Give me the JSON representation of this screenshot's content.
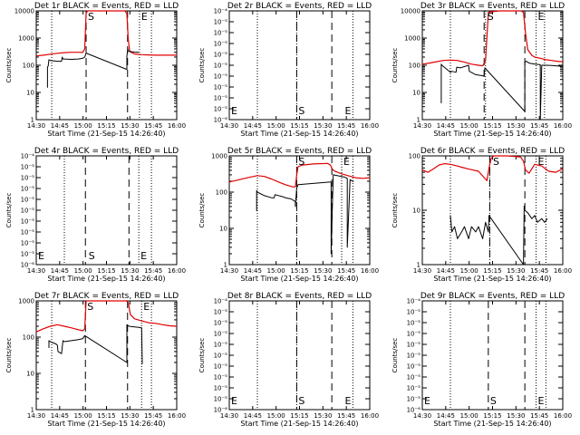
{
  "figure": {
    "colors": {
      "events": "#000000",
      "lld": "#e00000",
      "axes": "#000000"
    },
    "panel_titles": [
      "Det 1r BLACK = Events, RED = LLD",
      "Det 2r BLACK = Events, RED = LLD",
      "Det 3r BLACK = Events, RED = LLD",
      "Det 4r BLACK = Events, RED = LLD",
      "Det 5r BLACK = Events, RED = LLD",
      "Det 6r BLACK = Events, RED = LLD",
      "Det 7r BLACK = Events, RED = LLD",
      "Det 8r BLACK = Events, RED = LLD",
      "Det 9r BLACK = Events, RED = LLD"
    ]
  },
  "chart_data": [
    {
      "type": "line",
      "title": "Det 1r BLACK = Events, RED = LLD",
      "xlabel": "Start Time (21-Sep-15 14:26:40)",
      "ylabel": "Counts/sec",
      "xticks": [
        "14:30",
        "14:45",
        "15:00",
        "15:15",
        "15:30",
        "15:45",
        "16:00"
      ],
      "xlim": [
        0,
        100
      ],
      "ylim_exp": [
        0,
        4
      ],
      "yticks": [
        "1",
        "10",
        "100",
        "1000",
        "10000"
      ],
      "markers": [
        {
          "label": "S",
          "x": 35.5
        },
        {
          "label": "E",
          "x": 73.5
        }
      ],
      "dotted": [
        11,
        73.5,
        82
      ],
      "dashed": [
        35.5,
        65
      ],
      "series": [
        {
          "name": "LLD",
          "x": [
            0,
            5,
            10,
            15,
            20,
            25,
            30,
            33,
            34.5,
            35.5,
            36.5,
            38,
            45,
            55,
            60,
            63,
            64.5,
            65.5,
            66.5,
            70,
            75,
            80,
            85,
            90,
            95,
            100
          ],
          "y": [
            220,
            235,
            255,
            275,
            290,
            300,
            300,
            295,
            400,
            8000,
            10500,
            11000,
            11500,
            11800,
            11500,
            11000,
            8000,
            900,
            320,
            260,
            245,
            240,
            235,
            235,
            235,
            235
          ]
        },
        {
          "name": "Events",
          "x": [
            8,
            8,
            8.5,
            9,
            10,
            15,
            18,
            18.5,
            19,
            20,
            25,
            30,
            33,
            34.5,
            35.5,
            64.5,
            64.5,
            65.2,
            65.2,
            66,
            68,
            70,
            73
          ],
          "y": [
            15,
            85,
            95,
            160,
            150,
            140,
            140,
            200,
            170,
            170,
            165,
            170,
            180,
            200,
            280,
            70,
            220,
            400,
            350,
            330,
            315,
            305,
            300
          ]
        }
      ]
    },
    {
      "type": "line",
      "title": "Det 2r BLACK = Events, RED = LLD",
      "xlabel": "Start Time (21-Sep-15 14:26:40)",
      "ylabel": "Counts/sec",
      "xticks": [
        "14:30",
        "14:45",
        "15:00",
        "15:15",
        "15:30",
        "15:45",
        "16:00"
      ],
      "xlim": [
        0,
        100
      ],
      "ylim_exp": [
        -6,
        -4
      ],
      "yticks": [
        "10⁻⁶",
        "10⁻⁵",
        "10⁻⁵",
        "10⁻⁵",
        "10⁻⁵",
        "10⁻⁵",
        "10⁻⁵",
        "10⁻⁵",
        "10⁻⁵",
        "10⁻⁵",
        "10⁻⁴"
      ],
      "markers": [
        {
          "label": "S",
          "x": 48
        },
        {
          "label": "E",
          "x": 81
        }
      ],
      "dotted": [
        20,
        48,
        88
      ],
      "dashed": [
        48,
        73
      ],
      "series": []
    },
    {
      "type": "line",
      "title": "Det 3r BLACK = Events, RED = LLD",
      "xlabel": "Start Time (21-Sep-15 14:26:40)",
      "ylabel": "Counts/sec",
      "xticks": [
        "14:30",
        "14:45",
        "15:00",
        "15:15",
        "15:30",
        "15:45",
        "16:00"
      ],
      "xlim": [
        0,
        100
      ],
      "ylim_exp": [
        0,
        4
      ],
      "yticks": [
        "1",
        "10",
        "100",
        "1000",
        "10000"
      ],
      "markers": [
        {
          "label": "S",
          "x": 45
        },
        {
          "label": "E",
          "x": 81
        }
      ],
      "dotted": [
        20,
        45,
        81,
        87
      ],
      "dashed": [
        44,
        73
      ],
      "series": [
        {
          "name": "LLD",
          "x": [
            0,
            5,
            10,
            15,
            20,
            25,
            30,
            35,
            40,
            43,
            45,
            47,
            55,
            65,
            70,
            72,
            73.5,
            75,
            78,
            80,
            84,
            88,
            92,
            96,
            100
          ],
          "y": [
            110,
            120,
            135,
            150,
            155,
            150,
            130,
            110,
            100,
            95,
            150,
            9000,
            11500,
            11500,
            11000,
            9000,
            1500,
            380,
            230,
            200,
            180,
            160,
            150,
            140,
            135
          ]
        },
        {
          "name": "Events",
          "x": [
            13.5,
            13.5,
            14,
            15,
            20,
            21,
            24,
            24.5,
            27,
            33,
            33.5,
            38,
            44,
            44.5,
            73,
            73,
            74,
            76,
            80,
            84,
            84,
            85,
            88,
            92,
            96,
            100
          ],
          "y": [
            4,
            110,
            100,
            90,
            55,
            60,
            55,
            85,
            80,
            100,
            60,
            45,
            40,
            80,
            2,
            130,
            140,
            120,
            110,
            105,
            1,
            100,
            100,
            98,
            95,
            90
          ]
        }
      ]
    },
    {
      "type": "line",
      "title": "Det 4r BLACK = Events, RED = LLD",
      "xlabel": "Start Time (21-Sep-15 14:26:40)",
      "ylabel": "Counts/sec",
      "xticks": [
        "14:30",
        "14:45",
        "15:00",
        "15:15",
        "15:30",
        "15:45",
        "16:00"
      ],
      "xlim": [
        0,
        100
      ],
      "ylim_exp": [
        -6,
        -4
      ],
      "yticks": [
        "10⁻⁶",
        "10⁻⁵",
        "10⁻⁵",
        "10⁻⁵",
        "10⁻⁵",
        "10⁻⁵",
        "10⁻⁵",
        "10⁻⁵",
        "10⁻⁵",
        "10⁻⁵",
        "10⁻⁴"
      ],
      "markers": [
        {
          "label": "S",
          "x": 36
        },
        {
          "label": "E",
          "x": 73
        }
      ],
      "dotted": [
        20,
        73,
        82
      ],
      "dashed": [
        35,
        66
      ],
      "series": []
    },
    {
      "type": "line",
      "title": "Det 5r BLACK = Events, RED = LLD",
      "xlabel": "Start Time (21-Sep-15 14:26:40)",
      "ylabel": "Counts/sec",
      "xticks": [
        "14:30",
        "14:45",
        "15:00",
        "15:15",
        "15:30",
        "15:45",
        "16:00"
      ],
      "xlim": [
        0,
        100
      ],
      "ylim_exp": [
        0,
        3
      ],
      "yticks": [
        "1",
        "10",
        "100",
        "1000"
      ],
      "markers": [
        {
          "label": "S",
          "x": 48
        },
        {
          "label": "E",
          "x": 80
        }
      ],
      "dotted": [
        20,
        48,
        80,
        88
      ],
      "dashed": [
        48,
        73
      ],
      "series": [
        {
          "name": "LLD",
          "x": [
            0,
            5,
            10,
            15,
            20,
            25,
            30,
            35,
            40,
            45,
            47,
            48,
            49,
            52,
            60,
            70,
            72,
            73.5,
            75,
            80,
            85,
            90,
            95,
            100
          ],
          "y": [
            190,
            210,
            235,
            260,
            285,
            270,
            230,
            190,
            160,
            140,
            140,
            300,
            500,
            560,
            600,
            620,
            560,
            420,
            380,
            320,
            280,
            250,
            240,
            250
          ]
        },
        {
          "name": "Events",
          "x": [
            19.5,
            19.5,
            20,
            25,
            30,
            32,
            32.5,
            38,
            40,
            44,
            47,
            47,
            48,
            49,
            72.5,
            72.5,
            74,
            78,
            82,
            84,
            84,
            86,
            88,
            88.5
          ],
          "y": [
            30,
            110,
            100,
            80,
            70,
            70,
            85,
            75,
            70,
            65,
            55,
            40,
            130,
            160,
            190,
            2,
            300,
            280,
            260,
            240,
            3,
            220,
            200,
            195
          ]
        }
      ]
    },
    {
      "type": "line",
      "title": "Det 6r BLACK = Events, RED = LLD",
      "xlabel": "Start Time (21-Sep-15 14:26:40)",
      "ylabel": "Counts/sec",
      "xticks": [
        "14:30",
        "14:45",
        "15:00",
        "15:15",
        "15:30",
        "15:45",
        "16:00"
      ],
      "xlim": [
        0,
        100
      ],
      "ylim_exp": [
        0,
        2
      ],
      "yticks": [
        "1",
        "10",
        "100"
      ],
      "markers": [
        {
          "label": "S",
          "x": 49
        },
        {
          "label": "E",
          "x": 81
        }
      ],
      "dotted": [
        20,
        48,
        81,
        88
      ],
      "dashed": [
        48,
        73
      ],
      "series": [
        {
          "name": "LLD",
          "x": [
            0,
            4,
            8,
            12,
            16,
            20,
            24,
            28,
            32,
            36,
            40,
            44,
            46,
            47.5,
            49,
            51,
            55,
            60,
            65,
            70,
            72,
            73.5,
            76,
            80,
            85,
            90,
            95,
            100
          ],
          "y": [
            55,
            50,
            58,
            68,
            72,
            70,
            66,
            62,
            58,
            55,
            52,
            40,
            35,
            60,
            90,
            100,
            102,
            100,
            98,
            95,
            80,
            55,
            48,
            70,
            65,
            52,
            50,
            58
          ]
        },
        {
          "name": "Events",
          "x": [
            20,
            20,
            21,
            23,
            25,
            28,
            30,
            33,
            35,
            38,
            40,
            43,
            45,
            47,
            47.5,
            72,
            72.5,
            73,
            75,
            78,
            80,
            82,
            85,
            87,
            89
          ],
          "y": [
            7,
            8,
            4,
            5,
            3,
            4,
            5,
            3,
            5,
            4,
            5,
            3,
            6,
            4,
            8,
            1,
            12,
            10,
            9,
            7,
            8,
            6,
            7,
            6,
            7
          ]
        }
      ]
    },
    {
      "type": "line",
      "title": "Det 7r BLACK = Events, RED = LLD",
      "xlabel": "Start Time (21-Sep-15 14:26:40)",
      "ylabel": "Counts/sec",
      "xticks": [
        "14:30",
        "14:45",
        "15:00",
        "15:15",
        "15:30",
        "15:45",
        "16:00"
      ],
      "xlim": [
        0,
        100
      ],
      "ylim_exp": [
        0,
        3
      ],
      "yticks": [
        "1",
        "10",
        "100",
        "1000"
      ],
      "markers": [
        {
          "label": "S",
          "x": 35
        },
        {
          "label": "E",
          "x": 75
        }
      ],
      "dotted": [
        11,
        75,
        82
      ],
      "dashed": [
        35,
        65
      ],
      "series": [
        {
          "name": "LLD",
          "x": [
            0,
            5,
            10,
            15,
            20,
            25,
            30,
            33,
            34.5,
            35.5,
            40,
            50,
            60,
            64,
            65.5,
            67,
            70,
            75,
            80,
            85,
            90,
            95,
            100
          ],
          "y": [
            140,
            170,
            200,
            220,
            200,
            180,
            160,
            150,
            170,
            1200,
            1300,
            1300,
            1300,
            1200,
            900,
            420,
            320,
            280,
            250,
            240,
            220,
            205,
            200
          ]
        },
        {
          "name": "Events",
          "x": [
            9,
            9,
            10,
            14,
            15,
            15.5,
            18,
            19,
            20,
            25,
            30,
            33,
            34.5,
            64.5,
            64.5,
            66,
            70,
            73,
            75,
            75.5
          ],
          "y": [
            50,
            80,
            75,
            65,
            60,
            40,
            35,
            80,
            75,
            80,
            85,
            90,
            110,
            20,
            220,
            200,
            190,
            185,
            180,
            18
          ]
        }
      ]
    },
    {
      "type": "line",
      "title": "Det 8r BLACK = Events, RED = LLD",
      "xlabel": "Start Time (21-Sep-15 14:26:40)",
      "ylabel": "Counts/sec",
      "xticks": [
        "14:30",
        "14:45",
        "15:00",
        "15:15",
        "15:30",
        "15:45",
        "16:00"
      ],
      "xlim": [
        0,
        100
      ],
      "ylim_exp": [
        -6,
        -4
      ],
      "yticks": [
        "10⁻⁶",
        "10⁻⁵",
        "10⁻⁵",
        "10⁻⁵",
        "10⁻⁵",
        "10⁻⁵",
        "10⁻⁵",
        "10⁻⁵",
        "10⁻⁵",
        "10⁻⁵",
        "10⁻⁴"
      ],
      "markers": [
        {
          "label": "S",
          "x": 48
        },
        {
          "label": "E",
          "x": 81
        }
      ],
      "dotted": [
        20,
        48,
        88
      ],
      "dashed": [
        48,
        73
      ],
      "series": []
    },
    {
      "type": "line",
      "title": "Det 9r BLACK = Events, RED = LLD",
      "xlabel": "Start Time (21-Sep-15 14:26:40)",
      "ylabel": "Counts/sec",
      "xticks": [
        "14:30",
        "14:45",
        "15:00",
        "15:15",
        "15:30",
        "15:45",
        "16:00"
      ],
      "xlim": [
        0,
        100
      ],
      "ylim_exp": [
        -6,
        -4
      ],
      "yticks": [
        "10⁻⁶",
        "10⁻⁵",
        "10⁻⁵",
        "10⁻⁵",
        "10⁻⁵",
        "10⁻⁵",
        "10⁻⁵",
        "10⁻⁵",
        "10⁻⁵",
        "10⁻⁵",
        "10⁻⁴"
      ],
      "markers": [
        {
          "label": "S",
          "x": 47
        },
        {
          "label": "E",
          "x": 81
        }
      ],
      "dotted": [
        20,
        81,
        88
      ],
      "dashed": [
        47,
        73
      ],
      "series": []
    }
  ]
}
